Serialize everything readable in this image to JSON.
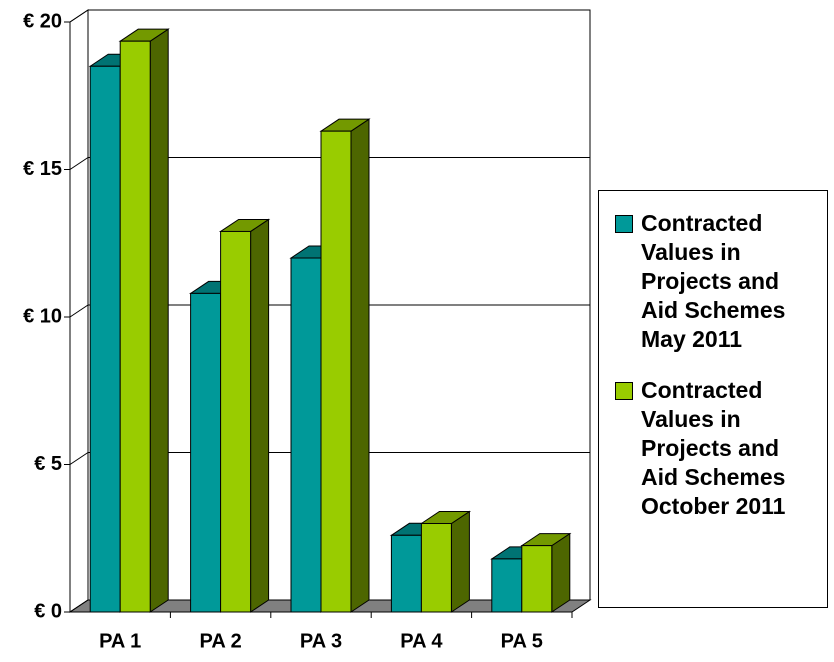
{
  "chart_data": {
    "type": "bar3d",
    "categories": [
      "PA 1",
      "PA 2",
      "PA 3",
      "PA 4",
      "PA 5"
    ],
    "series": [
      {
        "name": "Contracted Values in Projects and Aid Schemes May 2011",
        "color": "#009999",
        "values": [
          18.5,
          10.8,
          12.0,
          2.6,
          1.8
        ]
      },
      {
        "name": "Contracted Values in Projects and Aid Schemes October 2011",
        "color": "#99cc00",
        "values": [
          19.35,
          12.9,
          16.3,
          3.0,
          2.25
        ]
      }
    ],
    "ylim": [
      0,
      20
    ],
    "yticks": [
      {
        "value": 0,
        "label": "€ 0"
      },
      {
        "value": 5,
        "label": "€ 5"
      },
      {
        "value": 10,
        "label": "€ 10"
      },
      {
        "value": 15,
        "label": "€ 15"
      },
      {
        "value": 20,
        "label": "€ 20"
      }
    ],
    "grid": true,
    "legend": "right"
  }
}
